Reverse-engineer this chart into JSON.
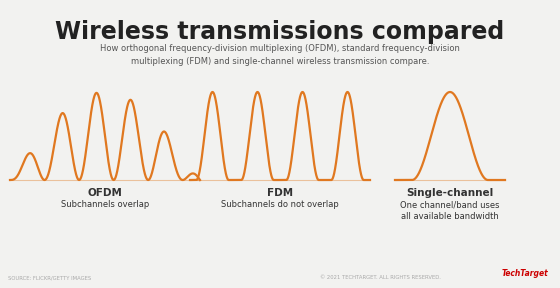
{
  "title": "Wireless transmissions compared",
  "subtitle": "How orthogonal frequency-division multiplexing (OFDM), standard frequency-division\nmultiplexing (FDM) and single-channel wireless transmission compare.",
  "bg_color": "#f2f2f0",
  "wave_color": "#e07820",
  "title_color": "#222222",
  "subtitle_color": "#555555",
  "label_color": "#333333",
  "sections": [
    {
      "label": "OFDM",
      "sublabel": "Subchannels overlap",
      "type": "ofdm"
    },
    {
      "label": "FDM",
      "sublabel": "Subchannels do not overlap",
      "type": "fdm"
    },
    {
      "label": "Single-channel",
      "sublabel": "One channel/band uses\nall available bandwidth",
      "type": "single"
    }
  ],
  "footer_left": "SOURCE: FLICKR/GETTY IMAGES",
  "footer_right": "© 2021 TECHTARGET. ALL RIGHTS RESERVED.",
  "brand": "TechTarget"
}
